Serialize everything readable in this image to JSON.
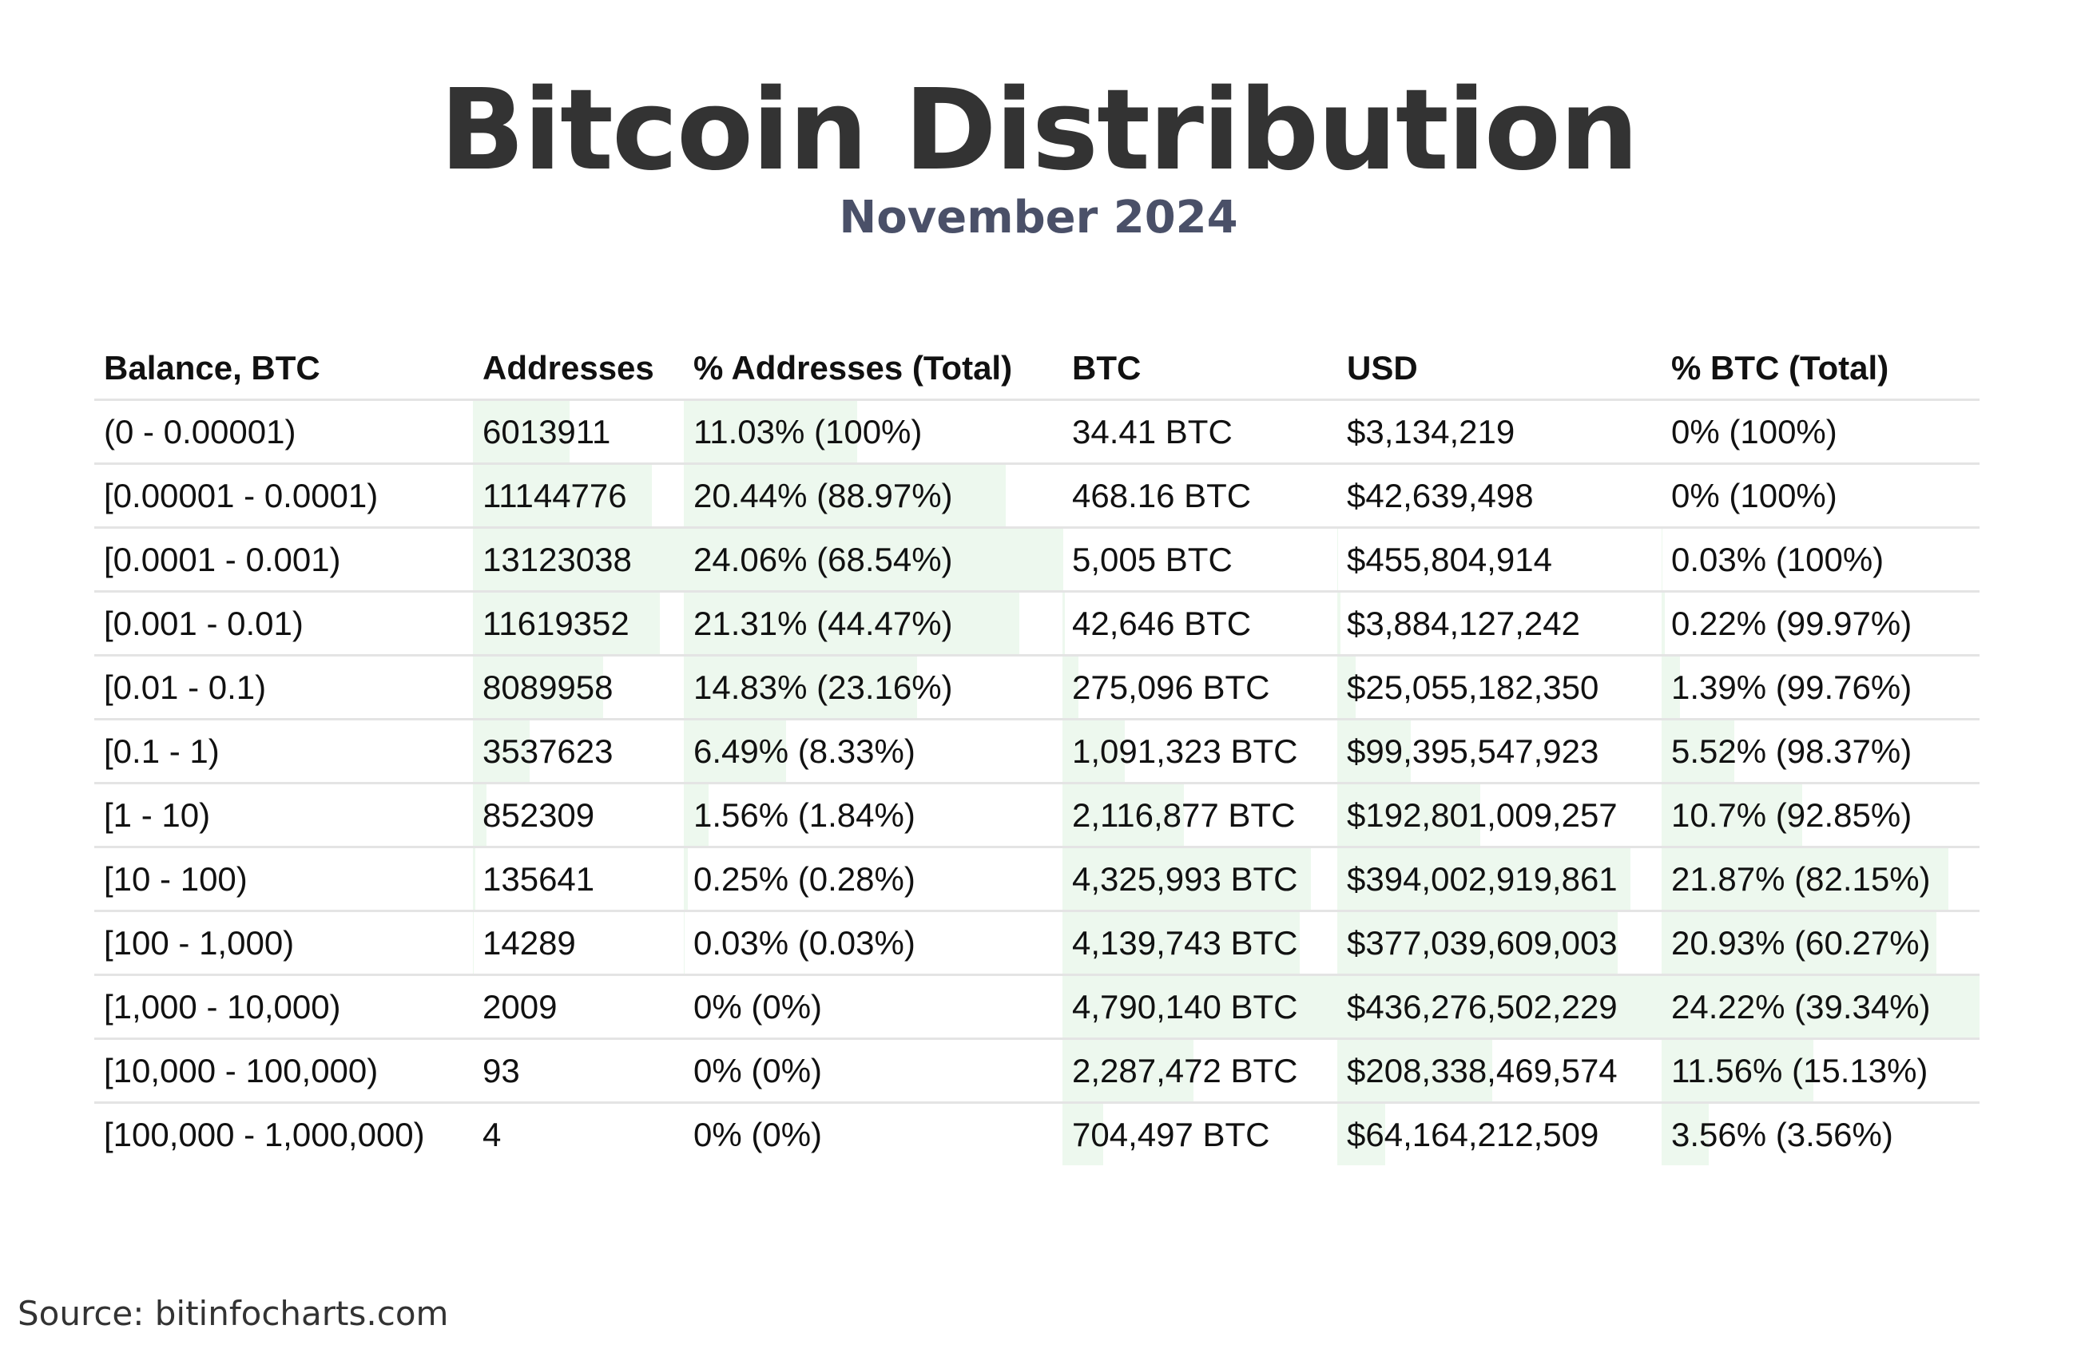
{
  "title": "Bitcoin Distribution",
  "subtitle": "November 2024",
  "source": "Source: bitinfocharts.com",
  "colors": {
    "title": "#333333",
    "subtitle": "#4a5068",
    "bar": "#edf8ee",
    "divider": "#e4e4e4"
  },
  "chart_data": {
    "type": "table",
    "title": "Bitcoin Distribution",
    "subtitle": "November 2024",
    "columns": [
      "Balance, BTC",
      "Addresses",
      "% Addresses (Total)",
      "BTC",
      "USD",
      "% BTC (Total)"
    ],
    "rows": [
      {
        "balance": "(0 - 0.00001)",
        "addresses": "6013911",
        "pct_addresses": "11.03% (100%)",
        "btc": "34.41 BTC",
        "usd": "$3,134,219",
        "pct_btc": "0% (100%)"
      },
      {
        "balance": "[0.00001 - 0.0001)",
        "addresses": "11144776",
        "pct_addresses": "20.44% (88.97%)",
        "btc": "468.16 BTC",
        "usd": "$42,639,498",
        "pct_btc": "0% (100%)"
      },
      {
        "balance": "[0.0001 - 0.001)",
        "addresses": "13123038",
        "pct_addresses": "24.06% (68.54%)",
        "btc": "5,005 BTC",
        "usd": "$455,804,914",
        "pct_btc": "0.03% (100%)"
      },
      {
        "balance": "[0.001 - 0.01)",
        "addresses": "11619352",
        "pct_addresses": "21.31% (44.47%)",
        "btc": "42,646 BTC",
        "usd": "$3,884,127,242",
        "pct_btc": "0.22% (99.97%)"
      },
      {
        "balance": "[0.01 - 0.1)",
        "addresses": "8089958",
        "pct_addresses": "14.83% (23.16%)",
        "btc": "275,096 BTC",
        "usd": "$25,055,182,350",
        "pct_btc": "1.39% (99.76%)"
      },
      {
        "balance": "[0.1 - 1)",
        "addresses": "3537623",
        "pct_addresses": "6.49% (8.33%)",
        "btc": "1,091,323 BTC",
        "usd": "$99,395,547,923",
        "pct_btc": "5.52% (98.37%)"
      },
      {
        "balance": "[1 - 10)",
        "addresses": "852309",
        "pct_addresses": "1.56% (1.84%)",
        "btc": "2,116,877 BTC",
        "usd": "$192,801,009,257",
        "pct_btc": "10.7% (92.85%)"
      },
      {
        "balance": "[10 - 100)",
        "addresses": "135641",
        "pct_addresses": "0.25% (0.28%)",
        "btc": "4,325,993 BTC",
        "usd": "$394,002,919,861",
        "pct_btc": "21.87% (82.15%)"
      },
      {
        "balance": "[100 - 1,000)",
        "addresses": "14289",
        "pct_addresses": "0.03% (0.03%)",
        "btc": "4,139,743 BTC",
        "usd": "$377,039,609,003",
        "pct_btc": "20.93% (60.27%)"
      },
      {
        "balance": "[1,000 - 10,000)",
        "addresses": "2009",
        "pct_addresses": "0% (0%)",
        "btc": "4,790,140 BTC",
        "usd": "$436,276,502,229",
        "pct_btc": "24.22% (39.34%)"
      },
      {
        "balance": "[10,000 - 100,000)",
        "addresses": "93",
        "pct_addresses": "0% (0%)",
        "btc": "2,287,472 BTC",
        "usd": "$208,338,469,574",
        "pct_btc": "11.56% (15.13%)"
      },
      {
        "balance": "[100,000 - 1,000,000)",
        "addresses": "4",
        "pct_addresses": "0% (0%)",
        "btc": "704,497 BTC",
        "usd": "$64,164,212,509",
        "pct_btc": "3.56% (3.56%)"
      }
    ]
  }
}
